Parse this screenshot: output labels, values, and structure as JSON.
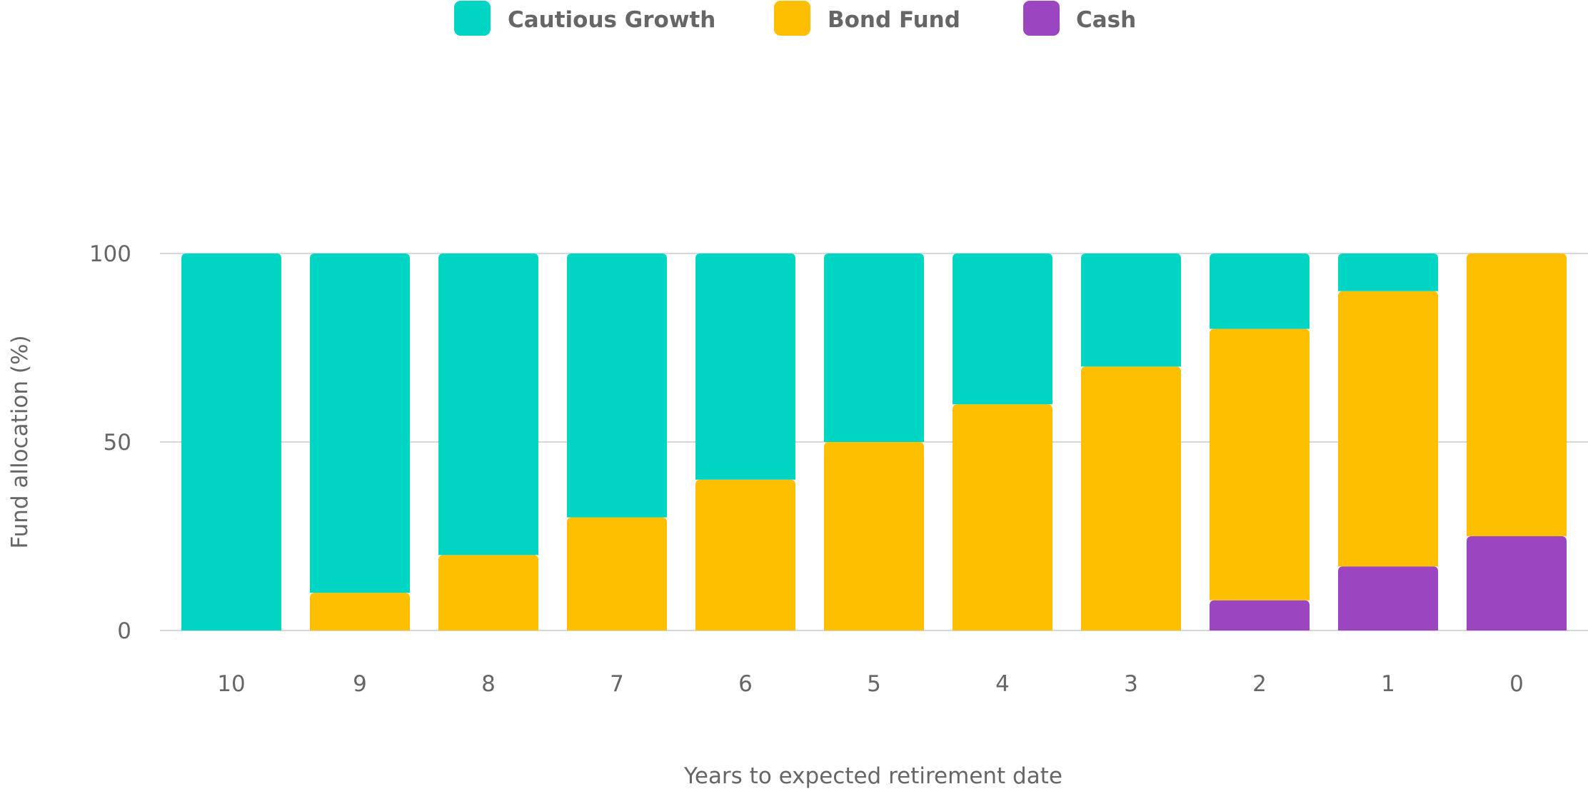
{
  "chart_data": {
    "type": "bar",
    "stacked": true,
    "categories": [
      "10",
      "9",
      "8",
      "7",
      "6",
      "5",
      "4",
      "3",
      "2",
      "1",
      "0"
    ],
    "series": [
      {
        "name": "Cash",
        "color": "#9b45c0",
        "values": [
          0,
          0,
          0,
          0,
          0,
          0,
          0,
          0,
          8,
          17,
          25
        ]
      },
      {
        "name": "Bond Fund",
        "color": "#fdbf00",
        "values": [
          0,
          10,
          20,
          30,
          40,
          50,
          60,
          70,
          72,
          73,
          75
        ]
      },
      {
        "name": "Cautious Growth",
        "color": "#00d5c3",
        "values": [
          100,
          90,
          80,
          70,
          60,
          50,
          40,
          30,
          20,
          10,
          0
        ]
      }
    ],
    "legend": {
      "position": "top-center",
      "order": [
        "Cautious Growth",
        "Bond Fund",
        "Cash"
      ]
    },
    "xlabel": "Years to expected retirement date",
    "ylabel": "Fund allocation (%)",
    "ylim": [
      0,
      100
    ],
    "yticks": [
      0,
      50,
      100
    ],
    "grid": true
  }
}
